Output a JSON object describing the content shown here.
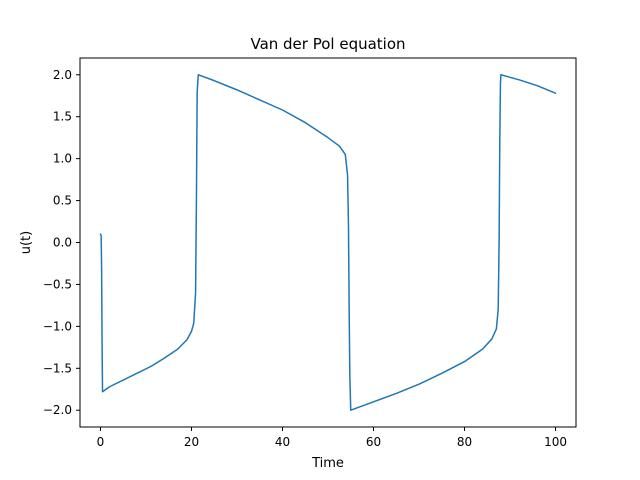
{
  "chart_data": {
    "type": "line",
    "title": "Van der Pol equation",
    "xlabel": "Time",
    "ylabel": "u(t)",
    "xlim": [
      -4.5,
      104.5
    ],
    "ylim": [
      -2.2,
      2.2
    ],
    "x_ticks": [
      0,
      20,
      40,
      60,
      80,
      100
    ],
    "x_tick_labels": [
      "0",
      "20",
      "40",
      "60",
      "80",
      "100"
    ],
    "y_ticks": [
      -2.0,
      -1.5,
      -1.0,
      -0.5,
      0.0,
      0.5,
      1.0,
      1.5,
      2.0
    ],
    "y_tick_labels": [
      "−2.0",
      "−1.5",
      "−1.0",
      "−0.5",
      "0.0",
      "0.5",
      "1.0",
      "1.5",
      "2.0"
    ],
    "grid": false,
    "series": [
      {
        "color": "#1f77b4",
        "points": [
          [
            0.0,
            0.1
          ],
          [
            0.15,
            0.08
          ],
          [
            0.25,
            -0.3
          ],
          [
            0.35,
            -1.2
          ],
          [
            0.45,
            -1.78
          ],
          [
            2.0,
            -1.72
          ],
          [
            5.0,
            -1.64
          ],
          [
            8.0,
            -1.56
          ],
          [
            11.0,
            -1.48
          ],
          [
            14.0,
            -1.38
          ],
          [
            17.0,
            -1.27
          ],
          [
            19.0,
            -1.16
          ],
          [
            20.0,
            -1.06
          ],
          [
            20.5,
            -0.96
          ],
          [
            20.9,
            -0.6
          ],
          [
            21.1,
            0.6
          ],
          [
            21.25,
            1.8
          ],
          [
            21.5,
            2.0
          ],
          [
            25.0,
            1.93
          ],
          [
            30.0,
            1.82
          ],
          [
            35.0,
            1.7
          ],
          [
            40.0,
            1.58
          ],
          [
            45.0,
            1.43
          ],
          [
            50.0,
            1.25
          ],
          [
            52.5,
            1.15
          ],
          [
            53.8,
            1.05
          ],
          [
            54.3,
            0.8
          ],
          [
            54.5,
            0.2
          ],
          [
            54.65,
            -0.8
          ],
          [
            54.8,
            -1.6
          ],
          [
            55.0,
            -2.0
          ],
          [
            60.0,
            -1.9
          ],
          [
            65.0,
            -1.8
          ],
          [
            70.0,
            -1.69
          ],
          [
            75.0,
            -1.56
          ],
          [
            80.0,
            -1.42
          ],
          [
            84.0,
            -1.27
          ],
          [
            86.0,
            -1.15
          ],
          [
            87.0,
            -1.03
          ],
          [
            87.4,
            -0.8
          ],
          [
            87.6,
            0.0
          ],
          [
            87.75,
            1.2
          ],
          [
            87.9,
            1.9
          ],
          [
            88.0,
            2.0
          ],
          [
            92.0,
            1.94
          ],
          [
            96.0,
            1.87
          ],
          [
            100.0,
            1.78
          ]
        ]
      }
    ]
  }
}
